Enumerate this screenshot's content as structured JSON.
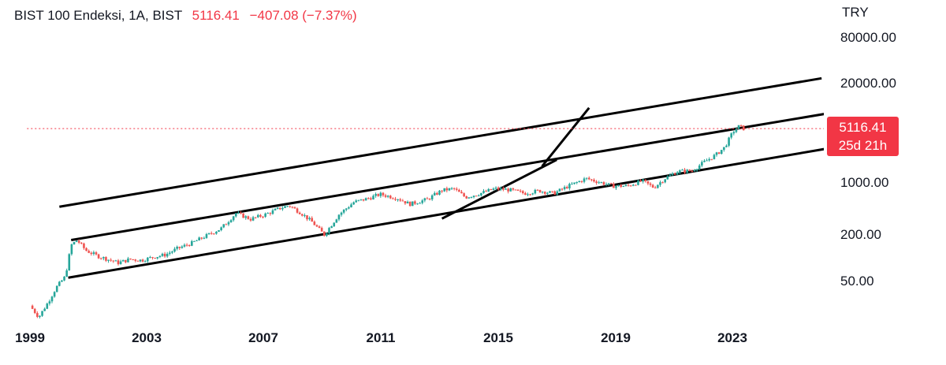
{
  "header": {
    "symbol": "BIST 100 Endeksi, 1A, BIST",
    "last_price": "5116.41",
    "change": "−407.08 (−7.37%)"
  },
  "price_badge": {
    "price": "5116.41",
    "countdown": "25d 21h"
  },
  "colors": {
    "up": "#26a69a",
    "down": "#ef5350",
    "badge": "#f23645",
    "trendline": "#000000",
    "price_line": "#f23645"
  },
  "chart_data": {
    "type": "candlestick",
    "title": "BIST 100 Endeksi, 1A, BIST",
    "interval": "1A (monthly)",
    "currency": "TRY",
    "y_scale": "log",
    "y_ticks": [
      "80000.00",
      "20000.00",
      "1000.00",
      "200.00",
      "50.00"
    ],
    "x_ticks": [
      "1999",
      "2003",
      "2007",
      "2011",
      "2015",
      "2019",
      "2023"
    ],
    "last_price": 5116.41,
    "x_range": [
      1998.9,
      2026.4
    ],
    "y_range_log10": [
      1.16,
      4.98
    ],
    "series": [
      {
        "points": [
          [
            1999.0,
            24
          ],
          [
            1999.3,
            17
          ],
          [
            1999.6,
            26
          ],
          [
            1999.9,
            42
          ],
          [
            2000.2,
            58
          ],
          [
            2000.4,
            150
          ],
          [
            2000.6,
            175
          ],
          [
            2000.9,
            128
          ],
          [
            2001.3,
            108
          ],
          [
            2001.7,
            96
          ],
          [
            2002.0,
            88
          ],
          [
            2002.4,
            98
          ],
          [
            2002.8,
            95
          ],
          [
            2003.2,
            105
          ],
          [
            2003.6,
            112
          ],
          [
            2004.0,
            135
          ],
          [
            2004.5,
            160
          ],
          [
            2005.0,
            200
          ],
          [
            2005.5,
            250
          ],
          [
            2006.0,
            395
          ],
          [
            2006.5,
            330
          ],
          [
            2007.0,
            380
          ],
          [
            2007.5,
            460
          ],
          [
            2007.8,
            500
          ],
          [
            2008.2,
            400
          ],
          [
            2008.6,
            300
          ],
          [
            2009.0,
            205
          ],
          [
            2009.5,
            380
          ],
          [
            2010.0,
            550
          ],
          [
            2010.5,
            620
          ],
          [
            2010.9,
            700
          ],
          [
            2011.5,
            620
          ],
          [
            2011.9,
            520
          ],
          [
            2012.5,
            600
          ],
          [
            2013.0,
            790
          ],
          [
            2013.4,
            830
          ],
          [
            2013.8,
            640
          ],
          [
            2014.3,
            720
          ],
          [
            2014.8,
            830
          ],
          [
            2015.3,
            800
          ],
          [
            2015.8,
            720
          ],
          [
            2016.3,
            780
          ],
          [
            2016.8,
            720
          ],
          [
            2017.3,
            900
          ],
          [
            2017.9,
            1130
          ],
          [
            2018.4,
            1000
          ],
          [
            2018.8,
            900
          ],
          [
            2019.3,
            900
          ],
          [
            2019.8,
            1050
          ],
          [
            2020.2,
            860
          ],
          [
            2020.6,
            1150
          ],
          [
            2021.0,
            1400
          ],
          [
            2021.5,
            1430
          ],
          [
            2021.9,
            1850
          ],
          [
            2022.3,
            2300
          ],
          [
            2022.6,
            2900
          ],
          [
            2022.9,
            4700
          ],
          [
            2023.1,
            5523
          ],
          [
            2023.25,
            5116
          ]
        ]
      }
    ],
    "trendlines": [
      {
        "from": [
          2000.0,
          480
        ],
        "to": [
          2025.9,
          23500
        ]
      },
      {
        "from": [
          2000.4,
          175
        ],
        "to": [
          2026.1,
          8100
        ]
      },
      {
        "from": [
          2000.3,
          56
        ],
        "to": [
          2026.1,
          2800
        ]
      },
      {
        "from": [
          2013.0,
          335
        ],
        "to": [
          2016.9,
          1990
        ]
      },
      {
        "from": [
          2016.4,
          1630
        ],
        "to": [
          2018.0,
          9600
        ]
      },
      {
        "from": [
          1998.9,
          5116.41
        ],
        "to": [
          2026.0,
          5116.41
        ]
      }
    ]
  }
}
